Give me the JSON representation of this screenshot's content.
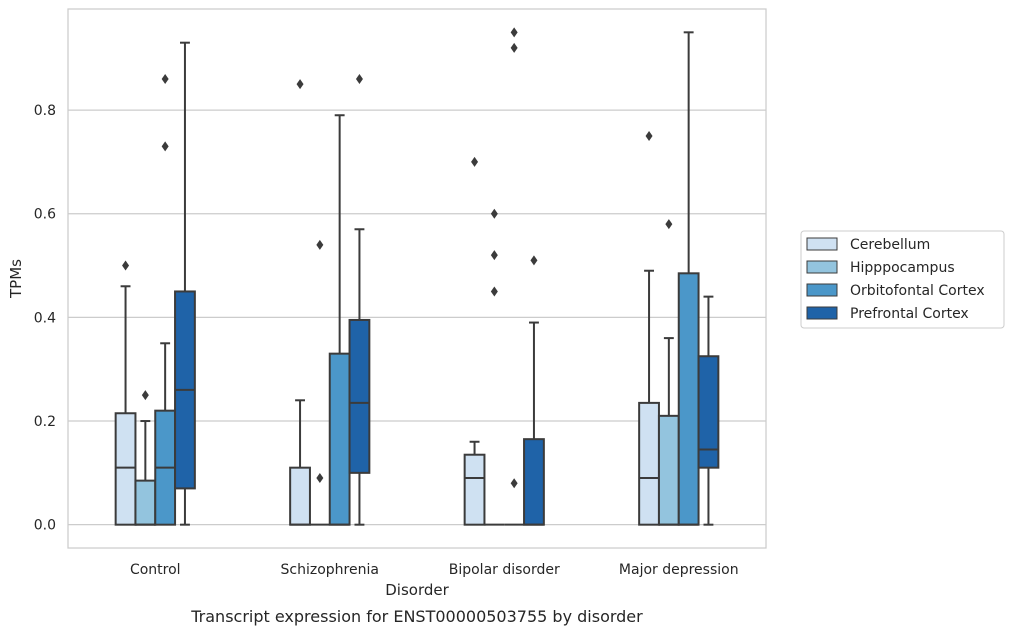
{
  "chart_data": {
    "type": "box",
    "title": "",
    "caption": "Transcript expression for ENST00000503755 by disorder",
    "xlabel": "Disorder",
    "ylabel": "TPMs",
    "ylim": [
      -0.045,
      0.995
    ],
    "yticks": [
      "0.0",
      "0.2",
      "0.4",
      "0.6",
      "0.8"
    ],
    "grid": "horizontal",
    "legend_position": "right",
    "categories": [
      "Control",
      "Schizophrenia",
      "Bipolar disorder",
      "Major depression"
    ],
    "series": [
      {
        "name": "Cerebellum",
        "color": "#cfe1f2",
        "boxes": [
          {
            "q1": 0.0,
            "median": 0.11,
            "q3": 0.215,
            "whisker_low": 0.0,
            "whisker_high": 0.46,
            "outliers": [
              0.5
            ]
          },
          {
            "q1": 0.0,
            "median": 0.0,
            "q3": 0.11,
            "whisker_low": 0.0,
            "whisker_high": 0.24,
            "outliers": [
              0.85
            ]
          },
          {
            "q1": 0.0,
            "median": 0.09,
            "q3": 0.135,
            "whisker_low": 0.0,
            "whisker_high": 0.16,
            "outliers": [
              0.7
            ]
          },
          {
            "q1": 0.0,
            "median": 0.09,
            "q3": 0.235,
            "whisker_low": 0.0,
            "whisker_high": 0.49,
            "outliers": [
              0.75
            ]
          }
        ]
      },
      {
        "name": "Hipppocampus",
        "color": "#93c4de",
        "boxes": [
          {
            "q1": 0.0,
            "median": 0.0,
            "q3": 0.085,
            "whisker_low": 0.0,
            "whisker_high": 0.2,
            "outliers": [
              0.25
            ]
          },
          {
            "q1": 0.0,
            "median": 0.0,
            "q3": 0.0,
            "whisker_low": 0.0,
            "whisker_high": 0.0,
            "outliers": [
              0.09,
              0.54
            ]
          },
          {
            "q1": 0.0,
            "median": 0.0,
            "q3": 0.0,
            "whisker_low": 0.0,
            "whisker_high": 0.0,
            "outliers": [
              0.45,
              0.52,
              0.6
            ]
          },
          {
            "q1": 0.0,
            "median": 0.0,
            "q3": 0.21,
            "whisker_low": 0.0,
            "whisker_high": 0.36,
            "outliers": [
              0.58
            ]
          }
        ]
      },
      {
        "name": "Orbitofontal Cortex",
        "color": "#4b97c9",
        "boxes": [
          {
            "q1": 0.0,
            "median": 0.11,
            "q3": 0.22,
            "whisker_low": 0.0,
            "whisker_high": 0.35,
            "outliers": [
              0.73,
              0.86
            ]
          },
          {
            "q1": 0.0,
            "median": 0.0,
            "q3": 0.33,
            "whisker_low": 0.0,
            "whisker_high": 0.79,
            "outliers": []
          },
          {
            "q1": 0.0,
            "median": 0.0,
            "q3": 0.0,
            "whisker_low": 0.0,
            "whisker_high": 0.0,
            "outliers": [
              0.08,
              0.92,
              0.95
            ]
          },
          {
            "q1": 0.0,
            "median": 0.0,
            "q3": 0.485,
            "whisker_low": 0.0,
            "whisker_high": 0.95,
            "outliers": []
          }
        ]
      },
      {
        "name": "Prefrontal Cortex",
        "color": "#1f63a8",
        "boxes": [
          {
            "q1": 0.07,
            "median": 0.26,
            "q3": 0.45,
            "whisker_low": 0.0,
            "whisker_high": 0.93,
            "outliers": []
          },
          {
            "q1": 0.1,
            "median": 0.235,
            "q3": 0.395,
            "whisker_low": 0.0,
            "whisker_high": 0.57,
            "outliers": [
              0.86
            ]
          },
          {
            "q1": 0.0,
            "median": 0.0,
            "q3": 0.165,
            "whisker_low": 0.0,
            "whisker_high": 0.39,
            "outliers": [
              0.51
            ]
          },
          {
            "q1": 0.11,
            "median": 0.145,
            "q3": 0.325,
            "whisker_low": 0.0,
            "whisker_high": 0.44,
            "outliers": []
          }
        ]
      }
    ]
  }
}
